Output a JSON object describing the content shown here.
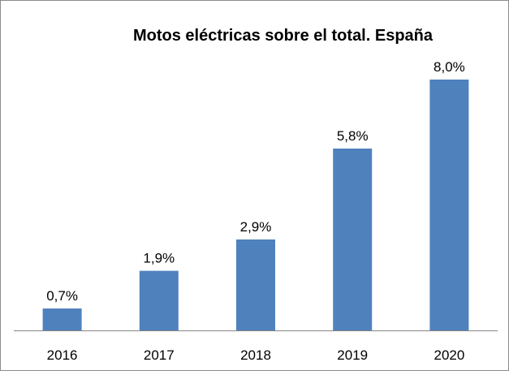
{
  "chart_data": {
    "type": "bar",
    "title": "Motos eléctricas sobre el total. España",
    "xlabel": "",
    "ylabel": "",
    "categories": [
      "2016",
      "2017",
      "2018",
      "2019",
      "2020"
    ],
    "values": [
      0.7,
      1.9,
      2.9,
      5.8,
      8.0
    ],
    "data_labels": [
      "0,7%",
      "1,9%",
      "2,9%",
      "5,8%",
      "8,0%"
    ],
    "ylim": [
      0,
      8.0
    ],
    "grid": false,
    "legend": "none",
    "bar_color": "#4f81bd",
    "axis_color": "#868686"
  }
}
